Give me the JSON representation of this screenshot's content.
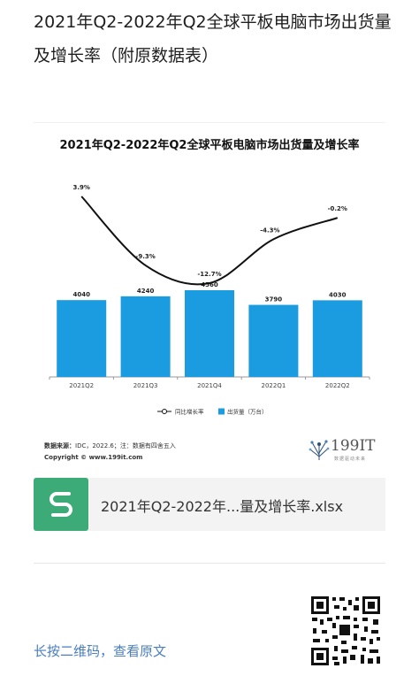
{
  "article": {
    "title": "2021年Q2-2022年Q2全球平板电脑市场出货量及增长率（附原数据表）"
  },
  "chart_data": {
    "type": "bar",
    "title": "2021年Q2-2022年Q2全球平板电脑市场出货量及增长率",
    "categories": [
      "2021Q2",
      "2021Q3",
      "2021Q4",
      "2022Q1",
      "2022Q2"
    ],
    "series": [
      {
        "name": "出货量（万台）",
        "type": "bar",
        "values": [
          4040,
          4240,
          4560,
          3790,
          4030
        ],
        "labels": [
          "4040",
          "4240",
          "4560",
          "3790",
          "4030"
        ]
      },
      {
        "name": "同比增长率",
        "type": "line",
        "values": [
          3.9,
          -9.3,
          -12.7,
          -4.3,
          -0.2
        ],
        "labels": [
          "3.9%",
          "-9.3%",
          "-12.7%",
          "-4.3%",
          "-0.2%"
        ]
      }
    ],
    "grid": false,
    "legend_position": "bottom",
    "colors": {
      "bar": "#1b9be0",
      "line": "#111111"
    }
  },
  "source": {
    "label": "数据来源：",
    "text": "IDC，2022.6；注：数据有四舍五入",
    "copyright": "Copyright © www.199it.com"
  },
  "logo": {
    "text": "199IT",
    "sub": "数据驱动未来"
  },
  "attachment": {
    "icon": "spreadsheet-icon",
    "icon_letter": "S",
    "name": "2021年Q2-2022年...量及增长率.xlsx"
  },
  "footer": {
    "longpress": "长按二维码，查看原文"
  }
}
